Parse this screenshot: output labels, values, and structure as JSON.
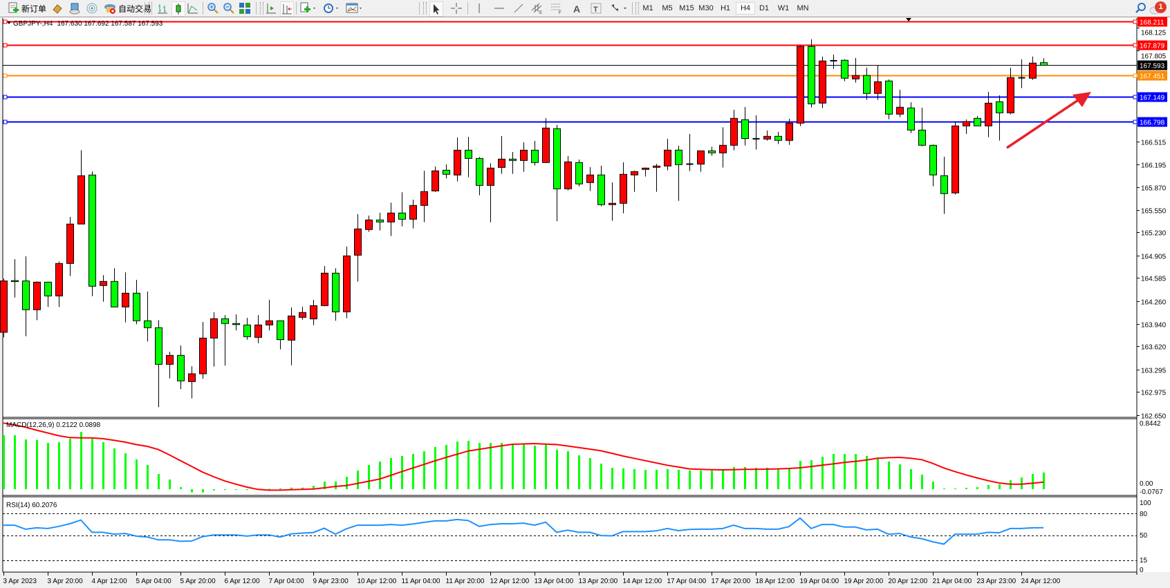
{
  "toolbar": {
    "new_order_label": "新订单",
    "auto_trading_label": "自动交易",
    "icons": [
      "new-order-icon",
      "market-watch-icon",
      "navigator-icon",
      "signals-icon",
      "auto-trading-icon",
      "bar-chart-icon",
      "candlestick-icon",
      "line-chart-icon",
      "zoom-in-icon",
      "zoom-out-icon",
      "tile-windows-icon",
      "auto-scroll-icon",
      "chart-shift-icon",
      "new-chart-icon",
      "periods-icon",
      "templates-icon",
      "cursor-icon",
      "crosshair-icon",
      "vertical-line-icon",
      "horizontal-line-icon",
      "trendline-icon",
      "equidistant-channel-icon",
      "fibonacci-icon",
      "text-icon",
      "text-label-icon",
      "arrows-icon",
      "search-icon",
      "notifications-icon"
    ],
    "timeframes": [
      "M1",
      "M5",
      "M15",
      "M30",
      "H1",
      "H4",
      "D1",
      "W1",
      "MN"
    ],
    "active_timeframe": "H4",
    "notification_count": "1"
  },
  "header": {
    "symbol": "GBPJPY-,H4",
    "ohlc_text": "167.630 167.692 167.587 167.593"
  },
  "colors": {
    "up_candle": "#ff0000",
    "down_candle": "#00ff00",
    "macd_histogram": "#00ff00",
    "macd_signal": "#ff0000",
    "rsi_line": "#1e90ff",
    "resistance": "#ff0000",
    "pivot": "#ff8c00",
    "support": "#0000ff",
    "bid_line": "#000000",
    "arrow": "#e8202a"
  },
  "price_axis": {
    "ticks": [
      "168.125",
      "167.805",
      "166.515",
      "166.195",
      "165.870",
      "165.550",
      "165.230",
      "164.905",
      "164.585",
      "164.260",
      "163.940",
      "163.620",
      "163.295",
      "162.975",
      "162.650"
    ]
  },
  "horizontal_lines": [
    {
      "price": "168.211",
      "color": "#ff0000"
    },
    {
      "price": "167.879",
      "color": "#ff0000"
    },
    {
      "price": "167.593",
      "color": "#000000"
    },
    {
      "price": "167.451",
      "color": "#ff8c00"
    },
    {
      "price": "167.149",
      "color": "#0000ff"
    },
    {
      "price": "166.798",
      "color": "#0000ff"
    }
  ],
  "macd_panel": {
    "label": "MACD(12,26,9) 0.2122 0.0898",
    "axis_labels": [
      "0.8442",
      "0.00",
      "-0.0767"
    ]
  },
  "rsi_panel": {
    "label": "RSI(14) 60.2076",
    "axis_labels": [
      "100",
      "80",
      "50",
      "15",
      "0"
    ],
    "levels": [
      80,
      50,
      15
    ]
  },
  "chart_data": {
    "type": "candlestick",
    "symbol": "GBPJPY-",
    "timeframe": "H4",
    "ylim": [
      162.65,
      168.211
    ],
    "grid": false,
    "columns": [
      "open",
      "high",
      "low",
      "close"
    ],
    "time_labels": [
      "3 Apr 2023",
      "3 Apr 20:00",
      "4 Apr 12:00",
      "5 Apr 04:00",
      "5 Apr 20:00",
      "6 Apr 12:00",
      "7 Apr 04:00",
      "9 Apr 23:00",
      "10 Apr 12:00",
      "11 Apr 04:00",
      "11 Apr 20:00",
      "12 Apr 12:00",
      "13 Apr 04:00",
      "13 Apr 20:00",
      "14 Apr 12:00",
      "17 Apr 04:00",
      "17 Apr 20:00",
      "18 Apr 12:00",
      "19 Apr 04:00",
      "19 Apr 20:00",
      "20 Apr 12:00",
      "21 Apr 04:00",
      "23 Apr 23:00",
      "24 Apr 12:00"
    ],
    "ohlc": [
      [
        163.819,
        164.577,
        163.747,
        164.545
      ],
      [
        164.55,
        164.854,
        164.31,
        164.54
      ],
      [
        164.545,
        164.893,
        163.763,
        164.138
      ],
      [
        164.138,
        164.538,
        163.991,
        164.528
      ],
      [
        164.528,
        164.528,
        164.177,
        164.333
      ],
      [
        164.333,
        164.821,
        164.177,
        164.792
      ],
      [
        164.792,
        165.45,
        164.616,
        165.349
      ],
      [
        165.349,
        166.393,
        165.349,
        166.032
      ],
      [
        166.042,
        166.091,
        164.33,
        164.47
      ],
      [
        164.48,
        164.626,
        164.252,
        164.538
      ],
      [
        164.538,
        164.724,
        164.177,
        164.177
      ],
      [
        164.177,
        164.665,
        163.959,
        164.372
      ],
      [
        164.372,
        164.561,
        163.933,
        163.982
      ],
      [
        163.982,
        164.395,
        163.689,
        163.884
      ],
      [
        163.884,
        163.991,
        162.761,
        163.366
      ],
      [
        163.366,
        163.545,
        163.168,
        163.493
      ],
      [
        163.493,
        163.633,
        163.015,
        163.132
      ],
      [
        163.122,
        163.34,
        162.885,
        163.233
      ],
      [
        163.233,
        163.965,
        163.161,
        163.737
      ],
      [
        163.737,
        164.102,
        163.334,
        164.011
      ],
      [
        164.011,
        164.063,
        163.347,
        163.943
      ],
      [
        163.943,
        164.073,
        163.845,
        163.935
      ],
      [
        163.923,
        164.024,
        163.715,
        163.757
      ],
      [
        163.747,
        164.063,
        163.666,
        163.923
      ],
      [
        163.923,
        164.278,
        163.845,
        163.982
      ],
      [
        163.982,
        163.982,
        163.578,
        163.715
      ],
      [
        163.708,
        164.17,
        163.353,
        164.05
      ],
      [
        164.03,
        164.18,
        163.998,
        164.099
      ],
      [
        164.008,
        164.278,
        163.92,
        164.196
      ],
      [
        164.196,
        164.756,
        164.187,
        164.655
      ],
      [
        164.655,
        164.724,
        163.982,
        164.108
      ],
      [
        164.108,
        165.03,
        164.017,
        164.899
      ],
      [
        164.909,
        165.489,
        164.535,
        165.28
      ],
      [
        165.271,
        165.469,
        165.238,
        165.407
      ],
      [
        165.407,
        165.508,
        165.258,
        165.378
      ],
      [
        165.378,
        165.651,
        165.179,
        165.505
      ],
      [
        165.505,
        165.798,
        165.316,
        165.417
      ],
      [
        165.417,
        165.694,
        165.287,
        165.612
      ],
      [
        165.612,
        166.104,
        165.375,
        165.808
      ],
      [
        165.817,
        166.162,
        165.804,
        166.101
      ],
      [
        166.11,
        166.192,
        165.993,
        166.052
      ],
      [
        166.042,
        166.573,
        165.951,
        166.393
      ],
      [
        166.393,
        166.582,
        166.009,
        166.276
      ],
      [
        166.276,
        166.296,
        165.756,
        165.895
      ],
      [
        165.895,
        166.208,
        165.375,
        166.14
      ],
      [
        166.149,
        166.592,
        166.058,
        166.267
      ],
      [
        166.267,
        166.367,
        166.058,
        166.247
      ],
      [
        166.247,
        166.504,
        166.088,
        166.393
      ],
      [
        166.393,
        166.524,
        166.175,
        166.218
      ],
      [
        166.218,
        166.846,
        166.218,
        166.706
      ],
      [
        166.697,
        166.749,
        165.388,
        165.847
      ],
      [
        165.847,
        166.31,
        165.825,
        166.228
      ],
      [
        166.218,
        166.261,
        165.883,
        165.916
      ],
      [
        165.935,
        166.153,
        165.815,
        166.043
      ],
      [
        166.043,
        166.173,
        165.6,
        165.623
      ],
      [
        165.623,
        165.938,
        165.395,
        165.642
      ],
      [
        165.642,
        166.222,
        165.502,
        166.052
      ],
      [
        166.043,
        166.104,
        165.805,
        166.091
      ],
      [
        166.121,
        166.147,
        166.02,
        166.14
      ],
      [
        166.15,
        166.199,
        165.805,
        166.169
      ],
      [
        166.169,
        166.554,
        166.108,
        166.394
      ],
      [
        166.394,
        166.456,
        165.678,
        166.189
      ],
      [
        166.196,
        166.622,
        166.098,
        166.196
      ],
      [
        166.196,
        166.384,
        166.088,
        166.384
      ],
      [
        166.384,
        166.443,
        166.313,
        166.355
      ],
      [
        166.355,
        166.716,
        166.147,
        166.462
      ],
      [
        166.462,
        166.964,
        166.391,
        166.843
      ],
      [
        166.824,
        167.003,
        166.459,
        166.557
      ],
      [
        166.554,
        166.886,
        166.401,
        166.554
      ],
      [
        166.55,
        166.671,
        166.528,
        166.589
      ],
      [
        166.589,
        166.651,
        166.479,
        166.531
      ],
      [
        166.531,
        166.837,
        166.469,
        166.775
      ],
      [
        166.775,
        167.872,
        166.733,
        167.859
      ],
      [
        167.859,
        167.96,
        166.996,
        167.048
      ],
      [
        167.058,
        167.716,
        166.986,
        167.654
      ],
      [
        167.657,
        167.745,
        167.543,
        167.657
      ],
      [
        167.664,
        167.677,
        167.367,
        167.41
      ],
      [
        167.4,
        167.696,
        167.348,
        167.449
      ],
      [
        167.449,
        167.559,
        167.104,
        167.195
      ],
      [
        167.195,
        167.598,
        167.104,
        167.361
      ],
      [
        167.371,
        167.393,
        166.83,
        166.902
      ],
      [
        166.902,
        167.247,
        166.86,
        167.0
      ],
      [
        166.99,
        167.071,
        166.635,
        166.677
      ],
      [
        166.677,
        166.993,
        166.449,
        166.462
      ],
      [
        166.462,
        166.472,
        165.883,
        166.043
      ],
      [
        166.033,
        166.3,
        165.492,
        165.779
      ],
      [
        165.789,
        166.798,
        165.766,
        166.736
      ],
      [
        166.736,
        166.827,
        166.622,
        166.798
      ],
      [
        166.843,
        166.876,
        166.736,
        166.736
      ],
      [
        166.736,
        167.218,
        166.576,
        167.058
      ],
      [
        167.078,
        167.169,
        166.528,
        166.921
      ],
      [
        166.921,
        167.559,
        166.899,
        167.419
      ],
      [
        167.416,
        167.677,
        167.27,
        167.416
      ],
      [
        167.41,
        167.716,
        167.387,
        167.624
      ],
      [
        167.63,
        167.692,
        167.587,
        167.593
      ]
    ],
    "macd": {
      "ylim": [
        -0.0767,
        0.8442
      ],
      "histogram": [
        0.686,
        0.686,
        0.633,
        0.624,
        0.589,
        0.598,
        0.642,
        0.73,
        0.642,
        0.598,
        0.519,
        0.457,
        0.378,
        0.308,
        0.193,
        0.123,
        0.026,
        -0.04,
        -0.04,
        -0.015,
        -0.01,
        -0.01,
        -0.01,
        0.002,
        0.005,
        0.01,
        0.02,
        0.02,
        0.044,
        0.097,
        0.097,
        0.158,
        0.237,
        0.308,
        0.352,
        0.396,
        0.422,
        0.448,
        0.483,
        0.536,
        0.563,
        0.607,
        0.615,
        0.589,
        0.589,
        0.589,
        0.58,
        0.571,
        0.554,
        0.571,
        0.501,
        0.483,
        0.431,
        0.396,
        0.325,
        0.272,
        0.264,
        0.255,
        0.246,
        0.246,
        0.255,
        0.246,
        0.237,
        0.237,
        0.237,
        0.237,
        0.281,
        0.281,
        0.272,
        0.272,
        0.255,
        0.255,
        0.36,
        0.369,
        0.413,
        0.448,
        0.448,
        0.448,
        0.422,
        0.404,
        0.352,
        0.316,
        0.255,
        0.185,
        0.097,
        0.009,
        0.009,
        0.018,
        0.026,
        0.053,
        0.062,
        0.114,
        0.149,
        0.193,
        0.2122
      ],
      "signal": [
        0.841,
        0.818,
        0.788,
        0.75,
        0.715,
        0.68,
        0.656,
        0.653,
        0.653,
        0.642,
        0.621,
        0.598,
        0.568,
        0.545,
        0.504,
        0.436,
        0.363,
        0.29,
        0.217,
        0.158,
        0.105,
        0.064,
        0.026,
        -0.003,
        -0.012,
        -0.012,
        -0.006,
        -0.003,
        0.003,
        0.018,
        0.035,
        0.047,
        0.074,
        0.101,
        0.129,
        0.176,
        0.223,
        0.27,
        0.315,
        0.36,
        0.404,
        0.445,
        0.486,
        0.508,
        0.53,
        0.551,
        0.571,
        0.576,
        0.58,
        0.574,
        0.568,
        0.549,
        0.53,
        0.51,
        0.489,
        0.456,
        0.422,
        0.393,
        0.363,
        0.334,
        0.305,
        0.282,
        0.258,
        0.252,
        0.249,
        0.246,
        0.249,
        0.252,
        0.253,
        0.255,
        0.258,
        0.264,
        0.272,
        0.287,
        0.305,
        0.322,
        0.34,
        0.354,
        0.372,
        0.393,
        0.401,
        0.404,
        0.393,
        0.375,
        0.328,
        0.27,
        0.223,
        0.182,
        0.144,
        0.108,
        0.079,
        0.064,
        0.064,
        0.076,
        0.0898
      ]
    },
    "rsi": {
      "ylim": [
        0,
        100
      ],
      "values": [
        63.7,
        63.7,
        58.2,
        60.1,
        59.1,
        62.1,
        65.7,
        70.9,
        53.9,
        53.9,
        51.3,
        52.3,
        48.7,
        47.4,
        43.5,
        43.5,
        41.5,
        41.9,
        48.0,
        50.3,
        50.3,
        50.3,
        48.7,
        50.3,
        50.3,
        47.4,
        51.6,
        52.9,
        53.6,
        59.5,
        51.3,
        58.8,
        63.7,
        63.7,
        63.7,
        64.7,
        63.7,
        65.3,
        67.6,
        69.6,
        69.6,
        71.5,
        70.2,
        62.1,
        64.7,
        65.7,
        65.7,
        66.6,
        63.7,
        67.9,
        53.9,
        56.9,
        53.9,
        53.9,
        49.4,
        49.0,
        54.9,
        54.9,
        54.9,
        55.9,
        59.1,
        56.2,
        57.8,
        58.2,
        58.2,
        59.1,
        63.7,
        59.1,
        59.1,
        58.2,
        58.2,
        61.7,
        73.5,
        59.1,
        64.7,
        64.7,
        61.1,
        61.1,
        57.2,
        58.2,
        51.3,
        52.3,
        47.4,
        45.1,
        40.9,
        37.6,
        51.3,
        51.3,
        51.3,
        53.9,
        53.3,
        59.1,
        59.1,
        60.1,
        60.2076
      ]
    }
  }
}
